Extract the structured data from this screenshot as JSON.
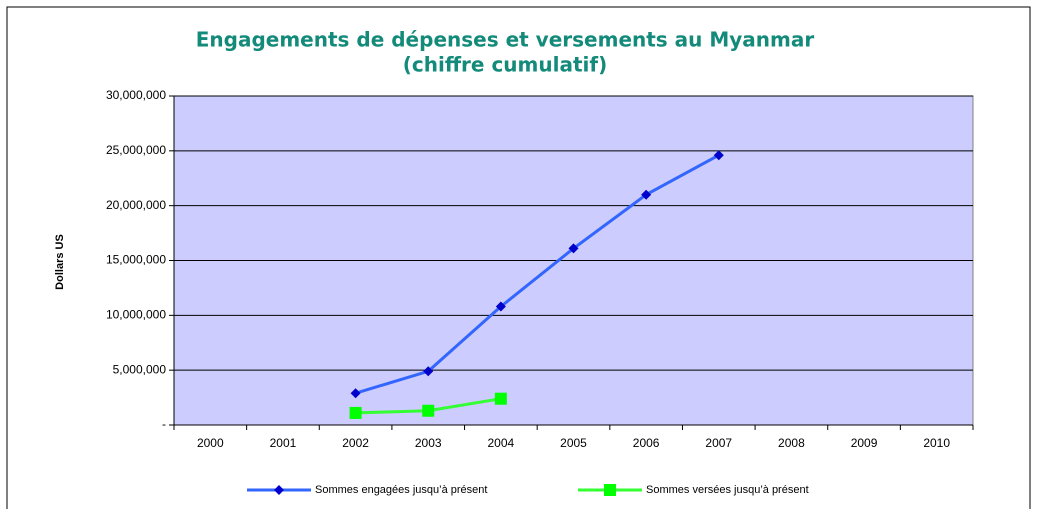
{
  "chart_data": {
    "type": "line",
    "title": "Engagements de dépenses et versements au Myanmar",
    "subtitle": "(chiffre cumulatif)",
    "y_label": "Dollars US",
    "categories": [
      "2000",
      "2001",
      "2002",
      "2003",
      "2004",
      "2005",
      "2006",
      "2007",
      "2008",
      "2009",
      "2010"
    ],
    "series": [
      {
        "name": "Sommes engagées jusqu’à présent",
        "color": "#3366ff",
        "marker": "diamond",
        "marker_color": "#0000cc",
        "values": [
          null,
          null,
          2900000,
          4900000,
          10800000,
          16100000,
          21000000,
          24600000,
          null,
          null,
          null
        ]
      },
      {
        "name": "Sommes versées jusqu’à présent",
        "color": "#33ff33",
        "marker": "square",
        "marker_color": "#00ff00",
        "values": [
          null,
          null,
          1100000,
          1300000,
          2400000,
          null,
          null,
          null,
          null,
          null,
          null
        ]
      }
    ],
    "ylim": [
      0,
      30000000
    ],
    "yticks": [
      {
        "value": 0,
        "label": "-"
      },
      {
        "value": 5000000,
        "label": "5,000,000"
      },
      {
        "value": 10000000,
        "label": "10,000,000"
      },
      {
        "value": 15000000,
        "label": "15,000,000"
      },
      {
        "value": 20000000,
        "label": "20,000,000"
      },
      {
        "value": 25000000,
        "label": "25,000,000"
      },
      {
        "value": 30000000,
        "label": "30,000,000"
      }
    ],
    "grid": true,
    "legend": "bottom"
  }
}
